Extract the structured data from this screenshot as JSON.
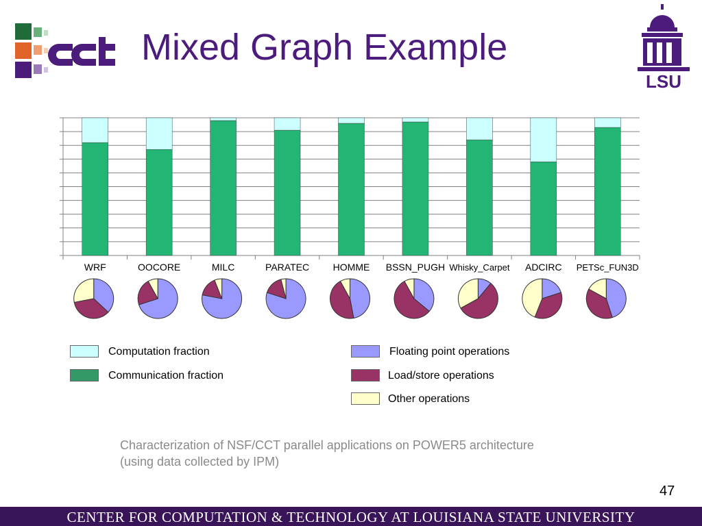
{
  "slide": {
    "title": "Mixed Graph Example",
    "caption_line1": "Characterization of NSF/CCT parallel applications on POWER5 architecture",
    "caption_line2": "(using data collected by IPM)",
    "page_number": "47",
    "footer": "CENTER FOR COMPUTATION & TECHNOLOGY AT LOUISIANA STATE UNIVERSITY",
    "logos": [
      "cct-logo",
      "lsu-logo"
    ]
  },
  "legend": {
    "computation": {
      "label": "Computation fraction",
      "color": "#ccffff"
    },
    "communication": {
      "label": "Communication fraction",
      "color": "#339966"
    },
    "float": {
      "label": "Floating point operations",
      "color": "#9999ff"
    },
    "loadstore": {
      "label": "Load/store operations",
      "color": "#993366"
    },
    "other": {
      "label": "Other operations",
      "color": "#ffffcc"
    }
  },
  "chart_data": [
    {
      "type": "bar",
      "stacked": true,
      "grid": true,
      "ylim": [
        0,
        1
      ],
      "categories": [
        "WRF",
        "OOCORE",
        "MILC",
        "PARATEC",
        "HOMME",
        "BSSN_PUGH",
        "Whisky_Carpet",
        "ADCIRC",
        "PETSc_FUN3D"
      ],
      "series": [
        {
          "name": "Communication fraction",
          "color": "#22b573",
          "values": [
            0.82,
            0.77,
            0.98,
            0.91,
            0.96,
            0.97,
            0.84,
            0.68,
            0.93
          ]
        },
        {
          "name": "Computation fraction",
          "color": "#ccffff",
          "values": [
            0.18,
            0.23,
            0.02,
            0.09,
            0.04,
            0.03,
            0.16,
            0.32,
            0.07
          ]
        }
      ]
    },
    {
      "type": "pie",
      "categories": [
        "WRF",
        "OOCORE",
        "MILC",
        "PARATEC",
        "HOMME",
        "BSSN_PUGH",
        "Whisky_Carpet",
        "ADCIRC",
        "PETSc_FUN3D"
      ],
      "slices": [
        "Floating point operations",
        "Load/store operations",
        "Other operations"
      ],
      "colors": [
        "#9999ff",
        "#993366",
        "#ffffcc"
      ],
      "values": [
        [
          0.37,
          0.35,
          0.28
        ],
        [
          0.7,
          0.22,
          0.08
        ],
        [
          0.78,
          0.16,
          0.06
        ],
        [
          0.8,
          0.16,
          0.04
        ],
        [
          0.47,
          0.45,
          0.08
        ],
        [
          0.36,
          0.56,
          0.08
        ],
        [
          0.11,
          0.56,
          0.33
        ],
        [
          0.2,
          0.36,
          0.44
        ],
        [
          0.45,
          0.38,
          0.17
        ]
      ]
    }
  ]
}
